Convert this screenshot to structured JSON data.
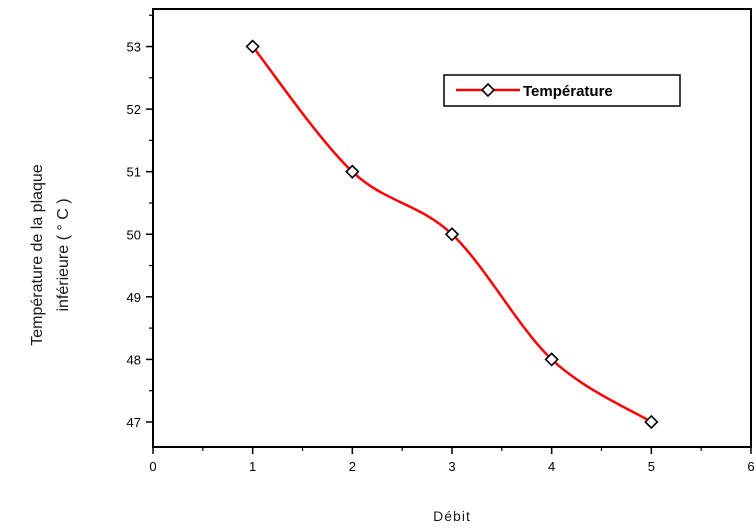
{
  "chart_data": {
    "type": "line",
    "x": [
      1,
      2,
      3,
      4,
      5
    ],
    "series": [
      {
        "name": "Température",
        "values": [
          53,
          51,
          50,
          48,
          47
        ],
        "color": "#ff0000",
        "marker": "diamond"
      }
    ],
    "xlabel": "Débit",
    "ylabel_line1": "Température de la plaque",
    "ylabel_line2": "inférieure ( ° C )",
    "xlim": [
      0,
      6
    ],
    "ylim": [
      46.6,
      53.6
    ],
    "xticks": [
      "0",
      "1",
      "2",
      "3",
      "4",
      "5",
      "6"
    ],
    "yticks": [
      "47",
      "48",
      "49",
      "50",
      "51",
      "52",
      "53"
    ],
    "grid": false,
    "legend_position": "top-right"
  }
}
